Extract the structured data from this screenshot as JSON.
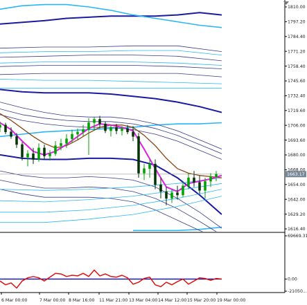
{
  "chart_data": {
    "type": "line",
    "main_panel": {
      "y_ticks": [
        "1810.00",
        "1797.20",
        "1784.40",
        "1771.20",
        "1758.40",
        "1745.60",
        "1732.40",
        "1719.60",
        "1706.00",
        "1693.60",
        "1680.00",
        "1668.00",
        "1654.00",
        "1642.00",
        "1629.20",
        "1616.40"
      ],
      "ylim": [
        1613,
        1815
      ],
      "current_price": "1663.17",
      "candles": [
        {
          "x": 0.0,
          "o": 1704,
          "h": 1709,
          "l": 1700,
          "c": 1706
        },
        {
          "x": 0.25,
          "o": 1706,
          "h": 1708,
          "l": 1698,
          "c": 1700
        },
        {
          "x": 0.5,
          "o": 1700,
          "h": 1704,
          "l": 1694,
          "c": 1696
        },
        {
          "x": 0.75,
          "o": 1696,
          "h": 1699,
          "l": 1686,
          "c": 1689
        },
        {
          "x": 1.0,
          "o": 1689,
          "h": 1691,
          "l": 1675,
          "c": 1678
        },
        {
          "x": 1.25,
          "o": 1678,
          "h": 1684,
          "l": 1670,
          "c": 1681
        },
        {
          "x": 1.5,
          "o": 1681,
          "h": 1686,
          "l": 1672,
          "c": 1676
        },
        {
          "x": 1.75,
          "o": 1676,
          "h": 1690,
          "l": 1674,
          "c": 1686
        },
        {
          "x": 2.0,
          "o": 1686,
          "h": 1689,
          "l": 1676,
          "c": 1679
        },
        {
          "x": 2.25,
          "o": 1679,
          "h": 1684,
          "l": 1675,
          "c": 1681
        },
        {
          "x": 2.5,
          "o": 1681,
          "h": 1692,
          "l": 1679,
          "c": 1688
        },
        {
          "x": 2.75,
          "o": 1688,
          "h": 1694,
          "l": 1684,
          "c": 1690
        },
        {
          "x": 3.0,
          "o": 1690,
          "h": 1698,
          "l": 1686,
          "c": 1694
        },
        {
          "x": 3.25,
          "o": 1694,
          "h": 1702,
          "l": 1690,
          "c": 1698
        },
        {
          "x": 3.5,
          "o": 1698,
          "h": 1703,
          "l": 1693,
          "c": 1700
        },
        {
          "x": 3.75,
          "o": 1700,
          "h": 1706,
          "l": 1696,
          "c": 1702
        },
        {
          "x": 4.0,
          "o": 1702,
          "h": 1712,
          "l": 1680,
          "c": 1708
        },
        {
          "x": 4.25,
          "o": 1708,
          "h": 1713,
          "l": 1701,
          "c": 1711
        },
        {
          "x": 4.5,
          "o": 1711,
          "h": 1714,
          "l": 1703,
          "c": 1707
        },
        {
          "x": 4.75,
          "o": 1707,
          "h": 1709,
          "l": 1699,
          "c": 1701
        },
        {
          "x": 5.0,
          "o": 1701,
          "h": 1706,
          "l": 1696,
          "c": 1704
        },
        {
          "x": 5.25,
          "o": 1704,
          "h": 1707,
          "l": 1698,
          "c": 1701
        },
        {
          "x": 5.5,
          "o": 1701,
          "h": 1705,
          "l": 1697,
          "c": 1703
        },
        {
          "x": 5.75,
          "o": 1703,
          "h": 1706,
          "l": 1698,
          "c": 1700
        },
        {
          "x": 6.0,
          "o": 1700,
          "h": 1705,
          "l": 1692,
          "c": 1696
        },
        {
          "x": 6.25,
          "o": 1696,
          "h": 1699,
          "l": 1660,
          "c": 1664
        },
        {
          "x": 6.5,
          "o": 1664,
          "h": 1672,
          "l": 1658,
          "c": 1668
        },
        {
          "x": 6.75,
          "o": 1668,
          "h": 1676,
          "l": 1660,
          "c": 1672
        },
        {
          "x": 7.0,
          "o": 1672,
          "h": 1676,
          "l": 1650,
          "c": 1654
        },
        {
          "x": 7.25,
          "o": 1654,
          "h": 1660,
          "l": 1642,
          "c": 1648
        },
        {
          "x": 7.5,
          "o": 1648,
          "h": 1652,
          "l": 1636,
          "c": 1642
        },
        {
          "x": 7.75,
          "o": 1642,
          "h": 1650,
          "l": 1638,
          "c": 1647
        },
        {
          "x": 8.0,
          "o": 1647,
          "h": 1653,
          "l": 1641,
          "c": 1645
        },
        {
          "x": 8.25,
          "o": 1645,
          "h": 1656,
          "l": 1643,
          "c": 1653
        },
        {
          "x": 8.5,
          "o": 1653,
          "h": 1664,
          "l": 1650,
          "c": 1660
        },
        {
          "x": 8.75,
          "o": 1660,
          "h": 1666,
          "l": 1652,
          "c": 1656
        },
        {
          "x": 9.0,
          "o": 1656,
          "h": 1662,
          "l": 1646,
          "c": 1649
        },
        {
          "x": 9.25,
          "o": 1649,
          "h": 1660,
          "l": 1642,
          "c": 1657
        },
        {
          "x": 9.5,
          "o": 1657,
          "h": 1664,
          "l": 1652,
          "c": 1661
        },
        {
          "x": 9.75,
          "o": 1661,
          "h": 1666,
          "l": 1657,
          "c": 1663.17
        }
      ],
      "lines": [
        {
          "color": "#1a1aa0",
          "width": 2,
          "x": [
            0,
            2,
            3,
            4,
            5,
            6,
            7,
            8,
            9,
            10
          ],
          "y": [
            1794,
            1797,
            1799,
            1800,
            1801,
            1801,
            1801,
            1802,
            1804,
            1802
          ]
        },
        {
          "color": "#29b6f6",
          "width": 1.6,
          "x": [
            0,
            1,
            2,
            3,
            4,
            5,
            6,
            7,
            8,
            9,
            10
          ],
          "y": [
            1807,
            1810,
            1811,
            1811,
            1809,
            1806,
            1802,
            1799,
            1796,
            1793,
            1791
          ]
        },
        {
          "color": "#1a1aa0",
          "width": 2,
          "x": [
            0,
            1,
            2,
            3,
            4,
            5,
            6,
            7,
            8,
            9,
            10
          ],
          "y": [
            1737,
            1735,
            1734,
            1734,
            1734,
            1733,
            1731,
            1729,
            1726,
            1722,
            1717
          ]
        },
        {
          "color": "#29b6f6",
          "width": 1.6,
          "x": [
            0,
            1,
            2,
            3,
            4,
            5,
            6,
            7,
            8,
            9,
            10
          ],
          "y": [
            1696,
            1698,
            1700,
            1701,
            1702,
            1703,
            1704,
            1706,
            1707,
            1707,
            1708
          ]
        },
        {
          "color": "#1a1aa0",
          "width": 2,
          "x": [
            0,
            1,
            2,
            3,
            4,
            5,
            6,
            7,
            8,
            9,
            10
          ],
          "y": [
            1680,
            1677,
            1676,
            1676,
            1677,
            1677,
            1676,
            1671,
            1660,
            1645,
            1628
          ]
        },
        {
          "color": "#29b6f6",
          "width": 1.6,
          "x": [
            6,
            7,
            8,
            9,
            10
          ],
          "y": [
            1614,
            1614,
            1614,
            1615,
            1617
          ]
        },
        {
          "color": "#3a3a8a",
          "width": 0.8,
          "x": [
            0,
            2,
            4,
            6,
            8,
            10
          ],
          "y": [
            1773,
            1774,
            1774,
            1775,
            1775,
            1770
          ]
        },
        {
          "color": "#3a3a8a",
          "width": 0.8,
          "x": [
            0,
            2,
            4,
            6,
            8,
            10
          ],
          "y": [
            1765,
            1766,
            1767,
            1767,
            1766,
            1762
          ]
        },
        {
          "color": "#3a3a8a",
          "width": 0.8,
          "x": [
            0,
            2,
            4,
            6,
            8,
            10
          ],
          "y": [
            1757,
            1758,
            1758,
            1758,
            1757,
            1755
          ]
        },
        {
          "color": "#3a3a8a",
          "width": 0.8,
          "x": [
            0,
            2,
            4,
            6,
            8,
            10
          ],
          "y": [
            1750,
            1751,
            1751,
            1751,
            1751,
            1748
          ]
        },
        {
          "color": "#29b6f6",
          "width": 0.8,
          "x": [
            0,
            2,
            4,
            6,
            8,
            10
          ],
          "y": [
            1769,
            1770,
            1770,
            1771,
            1771,
            1767
          ]
        },
        {
          "color": "#29b6f6",
          "width": 0.8,
          "x": [
            0,
            2,
            4,
            6,
            8,
            10
          ],
          "y": [
            1760,
            1761,
            1761,
            1761,
            1760,
            1758
          ]
        },
        {
          "color": "#29b6f6",
          "width": 0.8,
          "x": [
            0,
            2,
            4,
            6,
            8,
            10
          ],
          "y": [
            1746,
            1745,
            1745,
            1744,
            1743,
            1742
          ]
        },
        {
          "color": "#29b6f6",
          "width": 0.8,
          "x": [
            0,
            2,
            4,
            6,
            8,
            10
          ],
          "y": [
            1738,
            1738,
            1738,
            1738,
            1738,
            1738
          ]
        },
        {
          "color": "#3a3a8a",
          "width": 0.8,
          "x": [
            0,
            1,
            2,
            3,
            4,
            5,
            6,
            7,
            8,
            9,
            10
          ],
          "y": [
            1726,
            1721,
            1717,
            1714,
            1713,
            1713,
            1711,
            1707,
            1701,
            1693,
            1685
          ]
        },
        {
          "color": "#3a3a8a",
          "width": 0.8,
          "x": [
            0,
            1,
            2,
            3,
            4,
            5,
            6,
            7,
            8,
            9,
            10
          ],
          "y": [
            1720,
            1715,
            1712,
            1710,
            1709,
            1709,
            1707,
            1703,
            1697,
            1689,
            1681
          ]
        },
        {
          "color": "#3a3a8a",
          "width": 0.8,
          "x": [
            0,
            1,
            2,
            3,
            4,
            5,
            6,
            7,
            8,
            9,
            10
          ],
          "y": [
            1715,
            1710,
            1707,
            1705,
            1704,
            1704,
            1702,
            1698,
            1692,
            1684,
            1676
          ]
        },
        {
          "color": "#3a3a8a",
          "width": 0.8,
          "x": [
            0,
            1,
            2,
            3,
            4,
            5,
            6,
            7,
            8,
            9,
            10
          ],
          "y": [
            1666,
            1662,
            1660,
            1660,
            1661,
            1660,
            1658,
            1652,
            1642,
            1630,
            1616
          ]
        },
        {
          "color": "#3a3a8a",
          "width": 0.8,
          "x": [
            0,
            1,
            2,
            3,
            4,
            5,
            6,
            7,
            8,
            9,
            10
          ],
          "y": [
            1658,
            1654,
            1651,
            1651,
            1652,
            1651,
            1648,
            1642,
            1633,
            1622,
            1610
          ]
        },
        {
          "color": "#3a3a8a",
          "width": 0.8,
          "x": [
            0,
            1,
            2,
            3,
            4,
            5,
            6,
            7,
            8,
            9,
            10
          ],
          "y": [
            1650,
            1646,
            1643,
            1643,
            1643,
            1642,
            1639,
            1632,
            1623,
            1614,
            1606
          ]
        },
        {
          "color": "#29b6f6",
          "width": 0.8,
          "x": [
            0,
            2,
            4,
            6,
            8,
            10
          ],
          "y": [
            1650,
            1649,
            1650,
            1652,
            1655,
            1660
          ]
        },
        {
          "color": "#29b6f6",
          "width": 0.8,
          "x": [
            0,
            2,
            4,
            6,
            8,
            10
          ],
          "y": [
            1640,
            1639,
            1641,
            1644,
            1649,
            1655
          ]
        },
        {
          "color": "#29b6f6",
          "width": 0.8,
          "x": [
            0,
            2,
            4,
            6,
            8,
            10
          ],
          "y": [
            1630,
            1630,
            1632,
            1636,
            1642,
            1650
          ]
        },
        {
          "color": "#29b6f6",
          "width": 0.8,
          "x": [
            0,
            2,
            4,
            6,
            8,
            10
          ],
          "y": [
            1621,
            1621,
            1624,
            1628,
            1635,
            1644
          ]
        },
        {
          "color": "#8b4513",
          "width": 1.3,
          "x": [
            0,
            0.5,
            1,
            1.5,
            2,
            2.5,
            3,
            3.5,
            4,
            4.5,
            5,
            5.5,
            6,
            6.5,
            7,
            7.5,
            8,
            8.5,
            9,
            9.5,
            10
          ],
          "y": [
            1716,
            1710,
            1703,
            1696,
            1690,
            1686,
            1688,
            1693,
            1699,
            1704,
            1706,
            1706,
            1704,
            1697,
            1688,
            1677,
            1668,
            1664,
            1662,
            1661,
            1660
          ]
        },
        {
          "color": "#e020e0",
          "width": 2,
          "x": [
            0,
            0.5,
            1,
            1.5,
            2,
            2.5,
            3,
            3.5,
            4,
            4.5,
            5,
            5.5,
            6,
            6.5,
            7,
            7.5,
            8,
            8.5,
            9,
            9.5,
            10
          ],
          "y": [
            1708,
            1702,
            1692,
            1683,
            1680,
            1683,
            1689,
            1696,
            1703,
            1707,
            1706,
            1704,
            1701,
            1685,
            1668,
            1652,
            1648,
            1655,
            1657,
            1659,
            1662
          ]
        }
      ]
    },
    "sub_panel": {
      "y_ticks": [
        "69669.31",
        "0.00",
        "-21050..."
      ],
      "ylim": [
        -21050,
        69669.31
      ],
      "zero_level": 0,
      "series": {
        "color": "#dd1111",
        "x": [
          0,
          0.25,
          0.5,
          0.75,
          1,
          1.25,
          1.5,
          1.75,
          2,
          2.25,
          2.5,
          2.75,
          3,
          3.25,
          3.5,
          3.75,
          4,
          4.25,
          4.5,
          4.75,
          5,
          5.25,
          5.5,
          5.75,
          6,
          6.25,
          6.5,
          6.75,
          7,
          7.25,
          7.5,
          7.75,
          8,
          8.25,
          8.5,
          8.75,
          9,
          9.25,
          9.5,
          9.75,
          10
        ],
        "y": [
          -3000,
          -9000,
          -6000,
          -14000,
          -3000,
          2000,
          4000,
          2000,
          -3000,
          3000,
          9000,
          8000,
          4000,
          6000,
          5000,
          9000,
          4000,
          14000,
          5000,
          8000,
          4000,
          3000,
          6000,
          2000,
          -8000,
          -5000,
          1000,
          3000,
          -9000,
          -12000,
          -5000,
          -9000,
          -4000,
          0,
          -8000,
          -3000,
          2000,
          1000,
          -2000,
          1000,
          0
        ]
      }
    },
    "x_ticks": [
      "6 Mar 00:00",
      "7 Mar 00:00",
      "8 Mar 16:00",
      "11 Mar 21:00",
      "13 Mar 04:00",
      "14 Mar 12:00",
      "15 Mar 20:00",
      "19 Mar 00:00"
    ],
    "xlim": [
      0,
      10
    ],
    "grid": false,
    "colors": {
      "up_candle": "#00a000",
      "down_candle": "#003300",
      "axis": "#000000",
      "price_box": "#778899",
      "zero_line": "#1a1aa0",
      "background": "#ffffff"
    }
  }
}
